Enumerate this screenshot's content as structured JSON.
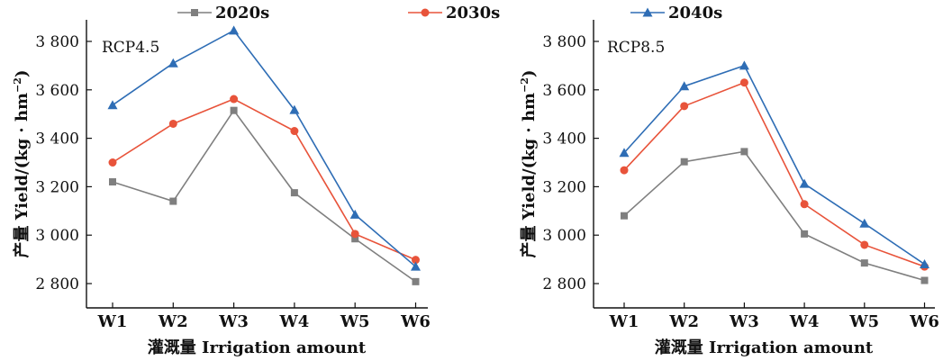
{
  "legend": {
    "items": [
      {
        "label": "2020s",
        "color": "#7f7f7f",
        "marker": "square"
      },
      {
        "label": "2030s",
        "color": "#e8533a",
        "marker": "circle"
      },
      {
        "label": "2040s",
        "color": "#2e6db5",
        "marker": "triangle"
      }
    ]
  },
  "chart_data": [
    {
      "type": "line",
      "panel_label": "RCP4.5",
      "categories": [
        "W1",
        "W2",
        "W3",
        "W4",
        "W5",
        "W6"
      ],
      "xlabel": "灌溉量 Irrigation amount",
      "ylabel": "产量 Yield/(kg · hm",
      "ylabel_sup": "−2",
      "ylabel_tail": ")",
      "ylim": [
        2700,
        3850
      ],
      "yticks": [
        2800,
        3000,
        3200,
        3400,
        3600,
        3800
      ],
      "ytick_labels": [
        "2 800",
        "3 000",
        "3 200",
        "3 400",
        "3 600",
        "3 800"
      ],
      "grid": false,
      "series": [
        {
          "name": "2020s",
          "color": "#7f7f7f",
          "marker": "square",
          "values": [
            3220,
            3140,
            3515,
            3175,
            2985,
            2808
          ]
        },
        {
          "name": "2030s",
          "color": "#e8533a",
          "marker": "circle",
          "values": [
            3300,
            3460,
            3562,
            3430,
            3005,
            2898
          ]
        },
        {
          "name": "2040s",
          "color": "#2e6db5",
          "marker": "triangle",
          "values": [
            3537,
            3710,
            3845,
            3517,
            3085,
            2870
          ]
        }
      ]
    },
    {
      "type": "line",
      "panel_label": "RCP8.5",
      "categories": [
        "W1",
        "W2",
        "W3",
        "W4",
        "W5",
        "W6"
      ],
      "xlabel": "灌溉量 Irrigation amount",
      "ylabel": "产量 Yield/(kg · hm",
      "ylabel_sup": "−2",
      "ylabel_tail": ")",
      "ylim": [
        2700,
        3850
      ],
      "yticks": [
        2800,
        3000,
        3200,
        3400,
        3600,
        3800
      ],
      "ytick_labels": [
        "2 800",
        "3 000",
        "3 200",
        "3 400",
        "3 600",
        "3 800"
      ],
      "grid": false,
      "series": [
        {
          "name": "2020s",
          "color": "#7f7f7f",
          "marker": "square",
          "values": [
            3080,
            3303,
            3345,
            3005,
            2885,
            2813
          ]
        },
        {
          "name": "2030s",
          "color": "#e8533a",
          "marker": "circle",
          "values": [
            3268,
            3533,
            3630,
            3128,
            2960,
            2870
          ]
        },
        {
          "name": "2040s",
          "color": "#2e6db5",
          "marker": "triangle",
          "values": [
            3340,
            3615,
            3700,
            3212,
            3048,
            2880
          ]
        }
      ]
    }
  ]
}
